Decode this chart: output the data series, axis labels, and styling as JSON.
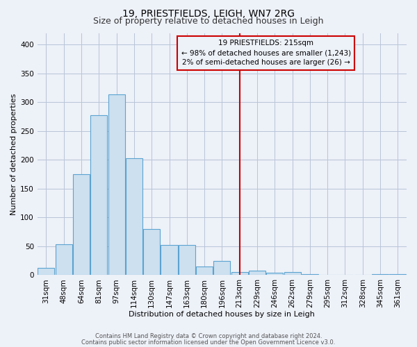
{
  "title": "19, PRIESTFIELDS, LEIGH, WN7 2RG",
  "subtitle": "Size of property relative to detached houses in Leigh",
  "xlabel": "Distribution of detached houses by size in Leigh",
  "ylabel": "Number of detached properties",
  "bar_color": "#cce0f0",
  "bar_edge_color": "#5ba3d0",
  "categories": [
    "31sqm",
    "48sqm",
    "64sqm",
    "81sqm",
    "97sqm",
    "114sqm",
    "130sqm",
    "147sqm",
    "163sqm",
    "180sqm",
    "196sqm",
    "213sqm",
    "229sqm",
    "246sqm",
    "262sqm",
    "279sqm",
    "295sqm",
    "312sqm",
    "328sqm",
    "345sqm",
    "361sqm"
  ],
  "values": [
    12,
    53,
    175,
    277,
    313,
    203,
    80,
    52,
    52,
    15,
    25,
    5,
    8,
    4,
    5,
    2,
    1,
    1,
    1,
    2,
    2
  ],
  "vline_x_index": 11,
  "vline_color": "#cc0000",
  "annotation_text": "19 PRIESTFIELDS: 215sqm\n← 98% of detached houses are smaller (1,243)\n2% of semi-detached houses are larger (26) →",
  "annotation_box_color": "#cc0000",
  "annotation_text_color": "#000000",
  "ylim": [
    0,
    420
  ],
  "yticks": [
    0,
    50,
    100,
    150,
    200,
    250,
    300,
    350,
    400
  ],
  "grid_color": "#b8c4d8",
  "bg_color": "#edf1f8",
  "footer_line1": "Contains HM Land Registry data © Crown copyright and database right 2024.",
  "footer_line2": "Contains public sector information licensed under the Open Government Licence v3.0.",
  "title_fontsize": 10,
  "subtitle_fontsize": 9,
  "annotation_fontsize": 7.5,
  "axis_label_fontsize": 8,
  "tick_fontsize": 7.5
}
